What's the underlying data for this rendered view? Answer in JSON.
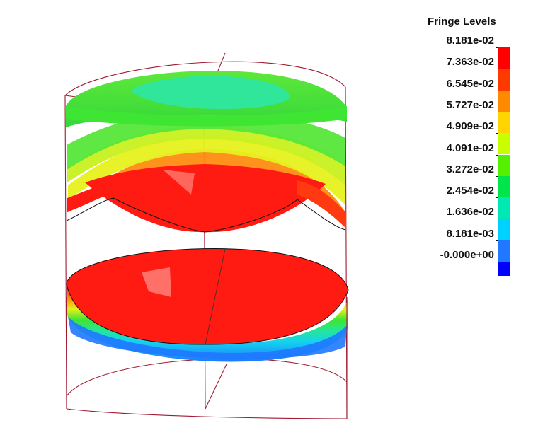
{
  "legend": {
    "title": "Fringe Levels",
    "levels": [
      {
        "label": "8.181e-02",
        "color": "#ff0000"
      },
      {
        "label": "7.363e-02",
        "color": "#ff3a00"
      },
      {
        "label": "6.545e-02",
        "color": "#ff8a00"
      },
      {
        "label": "5.727e-02",
        "color": "#ffd400"
      },
      {
        "label": "4.909e-02",
        "color": "#c8ff00"
      },
      {
        "label": "4.091e-02",
        "color": "#55ef00"
      },
      {
        "label": "3.272e-02",
        "color": "#00e64a"
      },
      {
        "label": "2.454e-02",
        "color": "#00e8b4"
      },
      {
        "label": "1.636e-02",
        "color": "#00d2ff"
      },
      {
        "label": "8.181e-03",
        "color": "#1f78ff"
      },
      {
        "label": "-0.000e+00",
        "color": "#0000ff"
      }
    ]
  },
  "model": {
    "outline_color": "#a01a32",
    "fringe_colors": {
      "red": "#ff1a12",
      "orange": "#ff8c10",
      "yellow": "#e6f21c",
      "green": "#3ee532",
      "teal": "#24e69a",
      "cyan": "#14d3ee",
      "blue": "#1f78ff"
    }
  }
}
